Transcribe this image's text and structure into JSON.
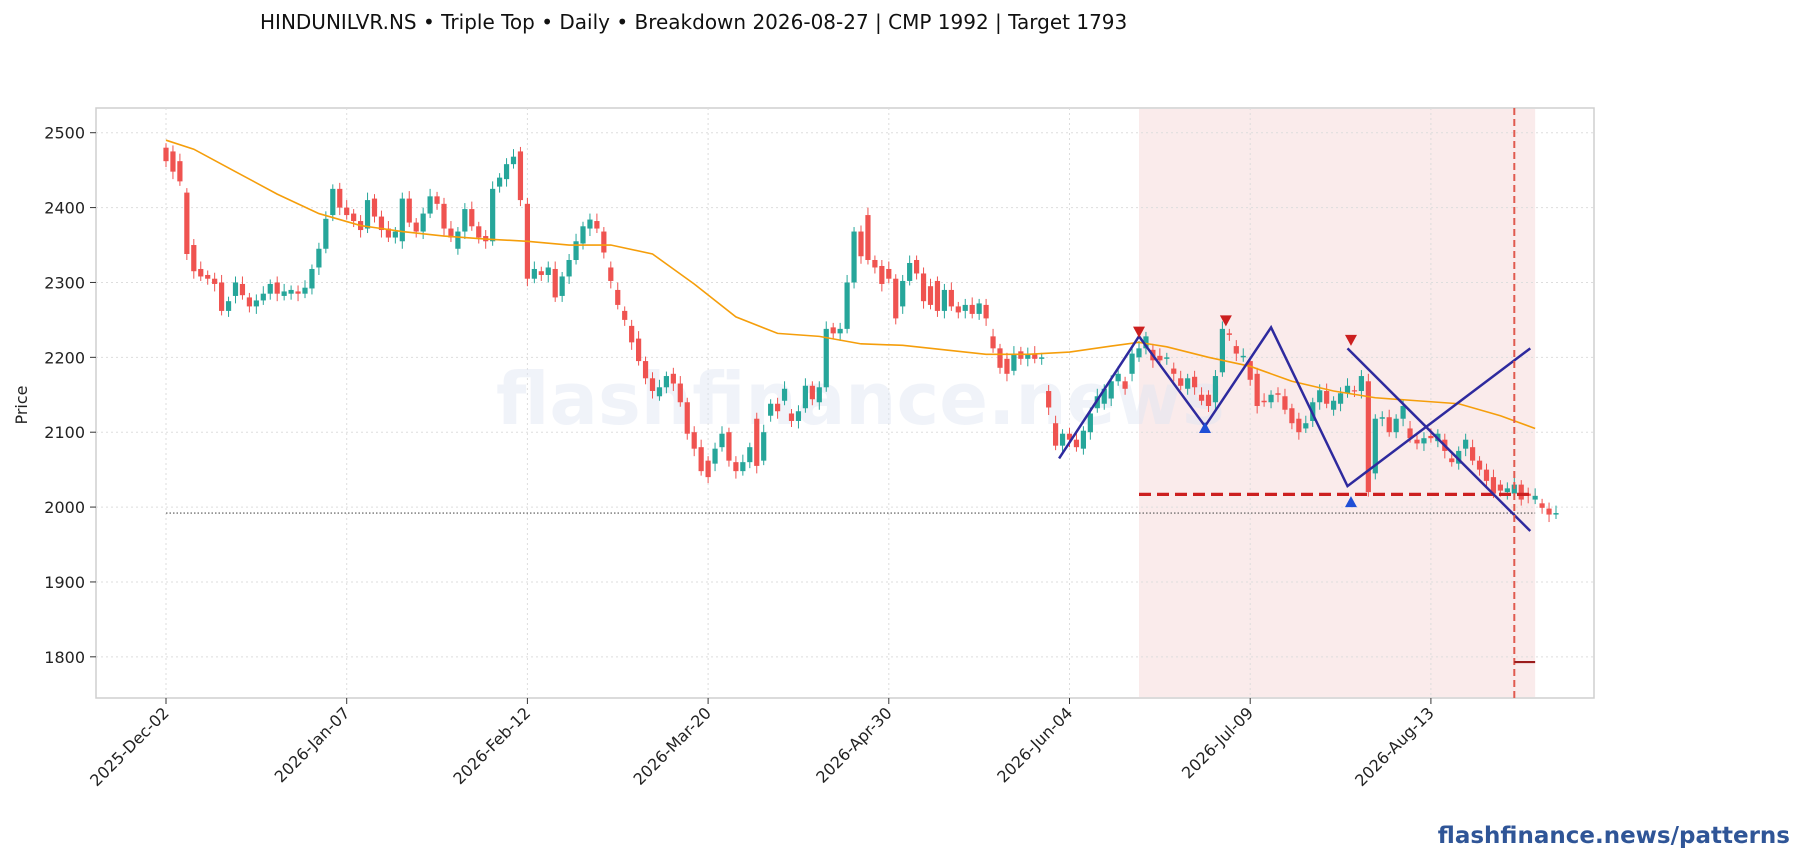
{
  "header": {
    "title": "HINDUNILVR.NS  •  Triple Top  •  Daily  •  Breakdown 2026-08-27  |  CMP 1992  |  Target 1793"
  },
  "footer": {
    "brand": "flashfinance.news/patterns"
  },
  "watermark": "flashfinance.news",
  "colors": {
    "bull": "#26a69a",
    "bear": "#ef5350",
    "ma": "#f59e0b",
    "pattern": "#2e2a9e",
    "neckline": "#cc1f1f",
    "peak_marker": "#cc1f1f",
    "trough_marker": "#1f4fd6",
    "zone": "#f9e6e6",
    "breakdown": "#e05a4f"
  },
  "chart_data": {
    "type": "candlestick",
    "title": "HINDUNILVR.NS  •  Triple Top  •  Daily  •  Breakdown 2026-08-27  |  CMP 1992  |  Target 1793",
    "ylabel": "Price",
    "xlabel": "",
    "ylim": [
      1745,
      2533
    ],
    "yticks": [
      1800,
      1900,
      2000,
      2100,
      2200,
      2300,
      2400,
      2500
    ],
    "xtick_labels": [
      "2025-Dec-02",
      "2026-Jan-07",
      "2026-Feb-12",
      "2026-Mar-20",
      "2026-Apr-30",
      "2026-Jun-04",
      "2026-Jul-09",
      "2026-Aug-13"
    ],
    "xtick_index": [
      0,
      26,
      52,
      78,
      104,
      130,
      156,
      182
    ],
    "grid": true,
    "candles": [
      [
        2480,
        2462
      ],
      [
        2475,
        2448
      ],
      [
        2462,
        2435
      ],
      [
        2420,
        2338
      ],
      [
        2350,
        2315
      ],
      [
        2318,
        2308
      ],
      [
        2310,
        2305
      ],
      [
        2305,
        2298
      ],
      [
        2300,
        2262
      ],
      [
        2262,
        2275
      ],
      [
        2282,
        2300
      ],
      [
        2298,
        2283
      ],
      [
        2280,
        2268
      ],
      [
        2268,
        2276
      ],
      [
        2276,
        2285
      ],
      [
        2285,
        2298
      ],
      [
        2300,
        2285
      ],
      [
        2282,
        2288
      ],
      [
        2285,
        2290
      ],
      [
        2288,
        2285
      ],
      [
        2285,
        2293
      ],
      [
        2292,
        2318
      ],
      [
        2320,
        2345
      ],
      [
        2345,
        2385
      ],
      [
        2390,
        2425
      ],
      [
        2425,
        2400
      ],
      [
        2400,
        2390
      ],
      [
        2392,
        2382
      ],
      [
        2382,
        2370
      ],
      [
        2372,
        2410
      ],
      [
        2412,
        2388
      ],
      [
        2388,
        2370
      ],
      [
        2372,
        2360
      ],
      [
        2360,
        2368
      ],
      [
        2355,
        2412
      ],
      [
        2412,
        2380
      ],
      [
        2380,
        2368
      ],
      [
        2368,
        2392
      ],
      [
        2392,
        2415
      ],
      [
        2415,
        2405
      ],
      [
        2405,
        2372
      ],
      [
        2372,
        2360
      ],
      [
        2345,
        2368
      ],
      [
        2368,
        2398
      ],
      [
        2398,
        2375
      ],
      [
        2375,
        2360
      ],
      [
        2362,
        2355
      ],
      [
        2355,
        2425
      ],
      [
        2428,
        2440
      ],
      [
        2438,
        2458
      ],
      [
        2458,
        2468
      ],
      [
        2475,
        2410
      ],
      [
        2405,
        2305
      ],
      [
        2305,
        2318
      ],
      [
        2315,
        2310
      ],
      [
        2310,
        2320
      ],
      [
        2318,
        2280
      ],
      [
        2282,
        2308
      ],
      [
        2308,
        2330
      ],
      [
        2330,
        2355
      ],
      [
        2352,
        2375
      ],
      [
        2372,
        2384
      ],
      [
        2382,
        2372
      ],
      [
        2368,
        2340
      ],
      [
        2320,
        2302
      ],
      [
        2290,
        2270
      ],
      [
        2262,
        2250
      ],
      [
        2242,
        2220
      ],
      [
        2225,
        2195
      ],
      [
        2195,
        2172
      ],
      [
        2172,
        2155
      ],
      [
        2148,
        2160
      ],
      [
        2160,
        2175
      ],
      [
        2178,
        2165
      ],
      [
        2165,
        2140
      ],
      [
        2140,
        2098
      ],
      [
        2100,
        2078
      ],
      [
        2080,
        2048
      ],
      [
        2062,
        2040
      ],
      [
        2058,
        2078
      ],
      [
        2080,
        2098
      ],
      [
        2100,
        2062
      ],
      [
        2060,
        2048
      ],
      [
        2048,
        2060
      ],
      [
        2060,
        2080
      ],
      [
        2118,
        2055
      ],
      [
        2062,
        2100
      ],
      [
        2122,
        2138
      ],
      [
        2138,
        2128
      ],
      [
        2142,
        2158
      ],
      [
        2125,
        2115
      ],
      [
        2115,
        2128
      ],
      [
        2132,
        2162
      ],
      [
        2162,
        2144
      ],
      [
        2140,
        2160
      ],
      [
        2160,
        2238
      ],
      [
        2240,
        2232
      ],
      [
        2232,
        2238
      ],
      [
        2238,
        2300
      ],
      [
        2300,
        2368
      ],
      [
        2368,
        2335
      ],
      [
        2390,
        2330
      ],
      [
        2330,
        2320
      ],
      [
        2322,
        2298
      ],
      [
        2318,
        2305
      ],
      [
        2305,
        2252
      ],
      [
        2268,
        2302
      ],
      [
        2302,
        2326
      ],
      [
        2330,
        2312
      ],
      [
        2312,
        2275
      ],
      [
        2295,
        2270
      ],
      [
        2302,
        2262
      ],
      [
        2262,
        2290
      ],
      [
        2290,
        2268
      ],
      [
        2268,
        2260
      ],
      [
        2262,
        2270
      ],
      [
        2270,
        2258
      ],
      [
        2258,
        2272
      ],
      [
        2270,
        2252
      ],
      [
        2228,
        2212
      ],
      [
        2212,
        2186
      ],
      [
        2198,
        2178
      ],
      [
        2182,
        2205
      ],
      [
        2208,
        2198
      ],
      [
        2198,
        2205
      ],
      [
        2205,
        2198
      ],
      [
        2198,
        2200
      ],
      [
        2155,
        2133
      ],
      [
        2112,
        2082
      ],
      [
        2082,
        2098
      ],
      [
        2098,
        2090
      ],
      [
        2090,
        2080
      ],
      [
        2078,
        2102
      ],
      [
        2100,
        2125
      ],
      [
        2132,
        2148
      ],
      [
        2138,
        2158
      ],
      [
        2145,
        2168
      ],
      [
        2168,
        2178
      ],
      [
        2168,
        2158
      ],
      [
        2178,
        2205
      ],
      [
        2200,
        2212
      ],
      [
        2212,
        2228
      ],
      [
        2210,
        2196
      ],
      [
        2202,
        2196
      ],
      [
        2198,
        2200
      ],
      [
        2185,
        2178
      ],
      [
        2172,
        2162
      ],
      [
        2158,
        2172
      ],
      [
        2174,
        2160
      ],
      [
        2150,
        2142
      ],
      [
        2150,
        2135
      ],
      [
        2140,
        2175
      ],
      [
        2180,
        2238
      ],
      [
        2232,
        2230
      ],
      [
        2215,
        2205
      ],
      [
        2200,
        2202
      ],
      [
        2195,
        2170
      ],
      [
        2178,
        2135
      ],
      [
        2142,
        2140
      ],
      [
        2140,
        2150
      ],
      [
        2152,
        2150
      ],
      [
        2148,
        2130
      ],
      [
        2132,
        2112
      ],
      [
        2118,
        2100
      ],
      [
        2105,
        2112
      ],
      [
        2115,
        2140
      ],
      [
        2140,
        2156
      ],
      [
        2155,
        2138
      ],
      [
        2130,
        2142
      ],
      [
        2138,
        2152
      ],
      [
        2152,
        2162
      ],
      [
        2156,
        2155
      ],
      [
        2155,
        2175
      ],
      [
        2168,
        2020
      ],
      [
        2045,
        2118
      ],
      [
        2118,
        2120
      ],
      [
        2120,
        2100
      ],
      [
        2100,
        2118
      ],
      [
        2118,
        2135
      ],
      [
        2105,
        2092
      ],
      [
        2090,
        2085
      ],
      [
        2085,
        2092
      ],
      [
        2095,
        2092
      ],
      [
        2088,
        2098
      ],
      [
        2090,
        2075
      ],
      [
        2065,
        2060
      ],
      [
        2058,
        2075
      ],
      [
        2078,
        2090
      ],
      [
        2080,
        2062
      ],
      [
        2062,
        2050
      ],
      [
        2050,
        2035
      ],
      [
        2040,
        2018
      ],
      [
        2030,
        2022
      ],
      [
        2020,
        2025
      ],
      [
        2018,
        2030
      ],
      [
        2030,
        2010
      ],
      [
        2018,
        2015
      ],
      [
        2010,
        2015
      ],
      [
        2005,
        1999
      ],
      [
        1998,
        1990
      ],
      [
        1990,
        1992
      ]
    ],
    "wicks_extra": 6,
    "moving_average": {
      "index": [
        0,
        4,
        10,
        16,
        22,
        28,
        34,
        40,
        46,
        52,
        58,
        64,
        70,
        76,
        82,
        88,
        94,
        100,
        106,
        112,
        118,
        124,
        130,
        136,
        140,
        144,
        150,
        156,
        162,
        168,
        174,
        180,
        186,
        192,
        197
      ],
      "values": [
        2490,
        2478,
        2448,
        2418,
        2392,
        2376,
        2368,
        2362,
        2358,
        2355,
        2350,
        2350,
        2338,
        2298,
        2254,
        2232,
        2228,
        2218,
        2216,
        2210,
        2204,
        2204,
        2207,
        2215,
        2220,
        2214,
        2200,
        2188,
        2168,
        2155,
        2146,
        2142,
        2138,
        2122,
        2105
      ]
    },
    "pattern_line": {
      "index": [
        128.5,
        140,
        149.5,
        159,
        170,
        196.3
      ],
      "values": [
        2065,
        2228,
        2108,
        2240,
        2028,
        2212
      ]
    },
    "pattern_line_tail": {
      "index": [
        170,
        196.3
      ],
      "values": [
        2212,
        1968
      ]
    },
    "peaks": {
      "index": [
        140,
        152.5,
        170.5
      ],
      "values": [
        2233,
        2248,
        2222
      ]
    },
    "troughs": {
      "index": [
        149.5,
        170.5
      ],
      "values": [
        2107,
        2008
      ]
    },
    "neckline": {
      "index": [
        140,
        197
      ],
      "value": 2017
    },
    "cmp_line": {
      "index": [
        0,
        197
      ],
      "value": 1992
    },
    "breakdown": {
      "date": "2026-08-27",
      "index": 194
    },
    "pattern_zone": {
      "index": [
        140,
        197
      ]
    },
    "target": {
      "value": 1793,
      "index": [
        194,
        197
      ]
    }
  }
}
